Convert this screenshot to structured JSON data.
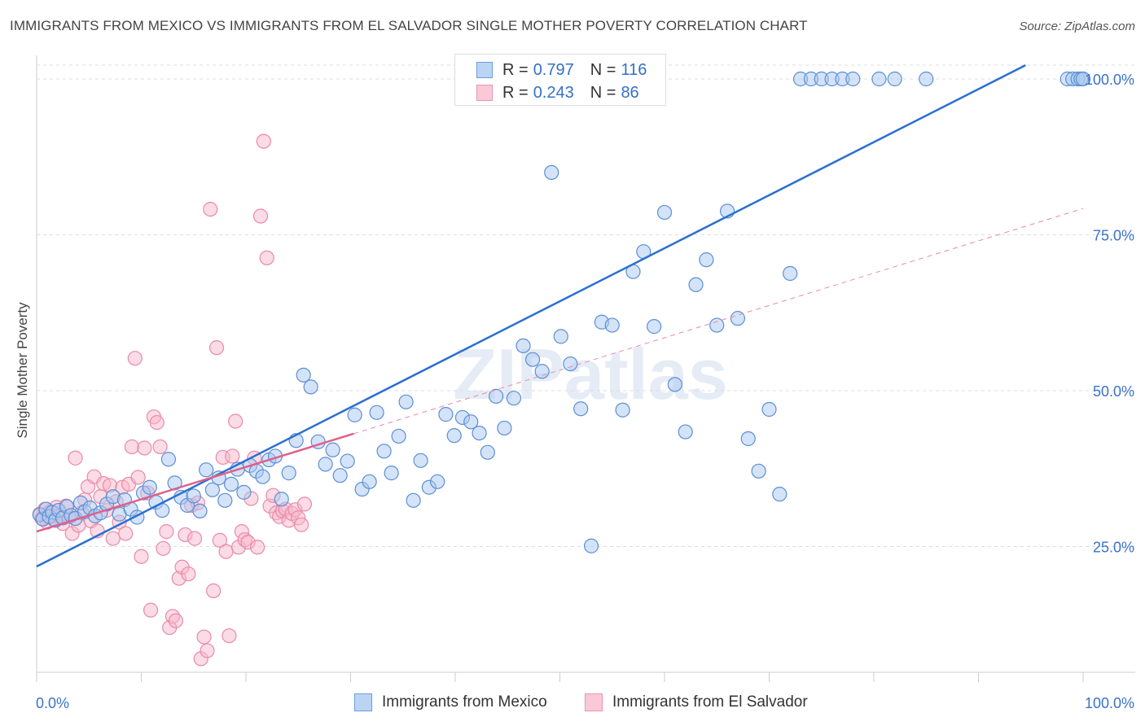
{
  "title": "IMMIGRANTS FROM MEXICO VS IMMIGRANTS FROM EL SALVADOR SINGLE MOTHER POVERTY CORRELATION CHART",
  "source": "Source: ZipAtlas.com",
  "watermark": "ZIPatlas",
  "colors": {
    "mexico_fill": "#a9c8f0",
    "mexico_stroke": "#5b8fd6",
    "mexico_line": "#2b6fd0",
    "salvador_fill": "#f7b8cb",
    "salvador_stroke": "#e98aa8",
    "salvador_line": "#e0608a",
    "axis_text": "#3a72c9",
    "grid": "#dddddd"
  },
  "legend": {
    "rows": [
      {
        "r_label": "R =",
        "r_value": "0.797",
        "n_label": "N =",
        "n_value": "116"
      },
      {
        "r_label": "R =",
        "r_value": "0.243",
        "n_label": "N =",
        "n_value": "86"
      }
    ]
  },
  "bottom_legend": [
    "Immigrants from Mexico",
    "Immigrants from El Salvador"
  ],
  "chart_data": {
    "type": "scatter",
    "title": "IMMIGRANTS FROM MEXICO VS IMMIGRANTS FROM EL SALVADOR SINGLE MOTHER POVERTY CORRELATION CHART",
    "xlabel": "",
    "ylabel": "Single Mother Poverty",
    "xlim": [
      0,
      100
    ],
    "ylim": [
      0,
      100
    ],
    "x_tick_labels": [
      "0.0%",
      "100.0%"
    ],
    "y_tick_labels": [
      "25.0%",
      "50.0%",
      "75.0%",
      "100.0%"
    ],
    "y_ticks": [
      25,
      50,
      75,
      100
    ],
    "grid": true,
    "legend_position": "top-center",
    "series": [
      {
        "name": "Immigrants from Mexico",
        "r": 0.797,
        "n": 116,
        "trend": {
          "x": [
            0,
            94.5
          ],
          "y": [
            21.8,
            102.2
          ]
        },
        "x": [
          0.3,
          0.6,
          0.9,
          1.2,
          1.5,
          1.8,
          2.1,
          2.5,
          2.9,
          3.3,
          3.7,
          4.2,
          4.6,
          5.1,
          5.6,
          6.1,
          6.7,
          7.3,
          7.9,
          8.4,
          9.0,
          9.6,
          10.2,
          10.8,
          11.4,
          12.0,
          12.6,
          13.2,
          13.8,
          14.4,
          15.0,
          15.6,
          16.2,
          16.8,
          17.4,
          18.0,
          18.6,
          19.2,
          19.8,
          20.4,
          21.0,
          21.6,
          22.2,
          22.8,
          23.4,
          24.1,
          24.8,
          25.5,
          26.2,
          26.9,
          27.6,
          28.3,
          29.0,
          29.7,
          30.4,
          31.1,
          31.8,
          32.5,
          33.2,
          33.9,
          34.6,
          35.3,
          36.0,
          36.7,
          37.5,
          38.3,
          39.1,
          39.9,
          40.7,
          41.5,
          42.3,
          43.1,
          43.9,
          44.7,
          45.6,
          46.5,
          47.4,
          48.3,
          49.2,
          50.1,
          51.0,
          52.0,
          53.0,
          54.0,
          55.0,
          56.0,
          57.0,
          58.0,
          59.0,
          60.0,
          61.0,
          62.0,
          63.0,
          64.0,
          65.0,
          66.0,
          67.0,
          68.0,
          69.0,
          70.0,
          71.0,
          72.0,
          73.0,
          74.0,
          75.0,
          76.0,
          77.0,
          78.0,
          80.5,
          82.0,
          85.0,
          98.5,
          99.0,
          99.5,
          99.8,
          100.0
        ],
        "y": [
          30.1,
          29.4,
          31.0,
          29.8,
          30.5,
          29.2,
          30.8,
          29.6,
          31.4,
          30.0,
          29.5,
          32.0,
          30.6,
          31.2,
          29.9,
          30.4,
          31.8,
          33.0,
          30.2,
          32.5,
          31.0,
          29.7,
          33.6,
          34.5,
          32.1,
          30.8,
          39.0,
          35.2,
          32.9,
          31.6,
          33.1,
          30.7,
          37.3,
          34.1,
          36.0,
          32.4,
          35.0,
          37.4,
          33.7,
          38.0,
          37.1,
          36.2,
          38.9,
          39.5,
          32.6,
          36.8,
          42.0,
          52.5,
          50.6,
          41.8,
          38.2,
          40.5,
          36.4,
          38.7,
          46.1,
          34.2,
          35.4,
          46.5,
          40.3,
          36.8,
          42.7,
          48.2,
          32.4,
          38.8,
          34.5,
          35.4,
          46.2,
          42.8,
          45.7,
          45.0,
          43.2,
          40.1,
          49.1,
          44.0,
          48.8,
          57.2,
          55.0,
          53.1,
          85.0,
          58.7,
          54.3,
          47.1,
          25.1,
          61.0,
          60.5,
          46.9,
          69.1,
          72.3,
          60.3,
          78.6,
          51.0,
          43.4,
          67.0,
          71.0,
          60.5,
          78.8,
          61.6,
          42.3,
          37.1,
          47.0,
          33.4,
          68.8,
          100.0,
          100.0,
          100.0,
          100.0,
          100.0,
          100.0,
          100.0,
          100.0,
          100.0,
          100.0,
          100.0,
          100.0,
          100.0,
          100.0
        ]
      },
      {
        "name": "Immigrants from El Salvador",
        "r": 0.243,
        "n": 86,
        "trend": {
          "x": [
            0,
            30.3
          ],
          "y": [
            27.4,
            43.1
          ]
        },
        "x": [
          0.3,
          0.5,
          0.8,
          1.0,
          1.3,
          1.6,
          1.9,
          2.2,
          2.5,
          2.8,
          3.1,
          3.4,
          3.7,
          4.0,
          4.3,
          4.6,
          4.9,
          5.2,
          5.5,
          5.8,
          6.1,
          6.4,
          6.7,
          7.0,
          7.3,
          7.6,
          7.9,
          8.2,
          8.5,
          8.8,
          9.1,
          9.4,
          9.7,
          10.0,
          10.3,
          10.6,
          10.9,
          11.2,
          11.5,
          11.8,
          12.1,
          12.4,
          12.7,
          13.0,
          13.3,
          13.6,
          13.9,
          14.2,
          14.5,
          14.8,
          15.1,
          15.4,
          15.7,
          16.0,
          16.3,
          16.6,
          16.9,
          17.2,
          17.5,
          17.8,
          18.1,
          18.4,
          18.7,
          19.0,
          19.3,
          19.6,
          19.9,
          20.2,
          20.5,
          20.8,
          21.1,
          21.4,
          21.7,
          22.0,
          22.3,
          22.6,
          22.9,
          23.2,
          23.5,
          23.8,
          24.1,
          24.4,
          24.7,
          25.0,
          25.3,
          25.6
        ],
        "y": [
          30.2,
          29.5,
          31.0,
          28.9,
          30.6,
          29.4,
          31.3,
          30.0,
          28.7,
          31.5,
          29.8,
          27.1,
          39.2,
          28.4,
          30.4,
          32.5,
          34.6,
          29.1,
          36.2,
          27.5,
          33.0,
          35.1,
          30.8,
          34.8,
          26.3,
          32.2,
          28.9,
          34.5,
          27.1,
          35.0,
          41.0,
          55.2,
          36.1,
          23.4,
          40.8,
          33.6,
          14.8,
          45.8,
          44.9,
          41.0,
          24.7,
          27.4,
          12.0,
          13.8,
          13.1,
          19.9,
          21.7,
          26.9,
          20.6,
          31.6,
          26.3,
          32.0,
          7.0,
          10.5,
          8.3,
          79.1,
          17.9,
          56.9,
          26.0,
          39.3,
          24.2,
          10.7,
          39.5,
          45.1,
          24.9,
          27.4,
          26.1,
          25.7,
          32.7,
          39.2,
          24.9,
          78.0,
          90.0,
          71.3,
          31.5,
          33.2,
          30.4,
          29.8,
          30.7,
          31.0,
          29.2,
          30.3,
          30.9,
          29.6,
          28.5,
          31.8
        ]
      }
    ]
  }
}
